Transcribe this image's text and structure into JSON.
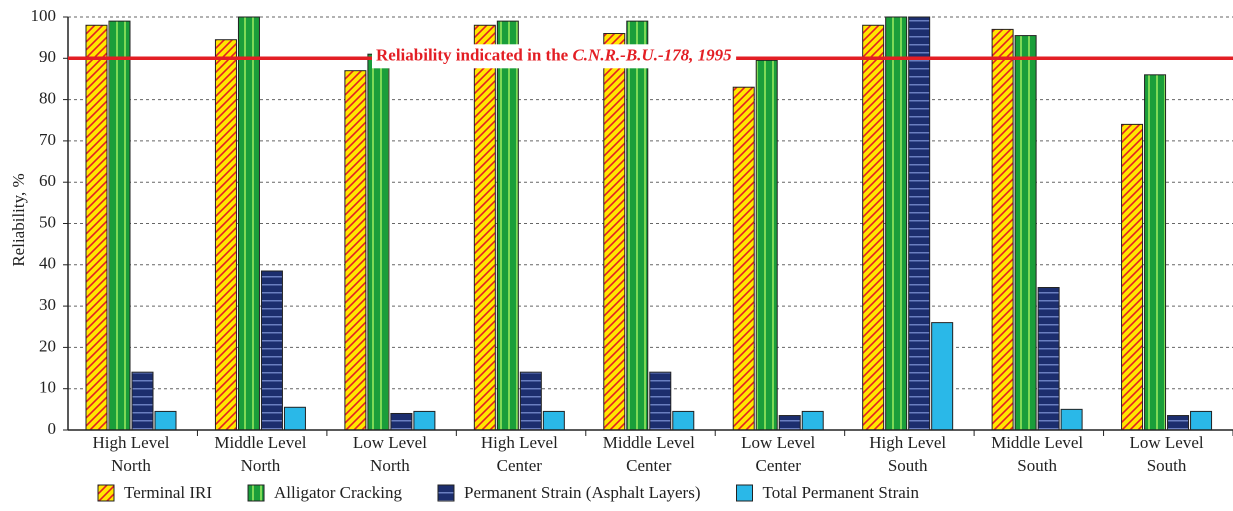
{
  "chart_data": {
    "type": "bar",
    "y_label": "Reliability, %",
    "annotation": {
      "text": "Reliability indicated in the ",
      "italic": "C.N.R.-B.U.-178, 1995",
      "value": 90,
      "color": "#e31e24"
    },
    "categories": [
      [
        "High  Level",
        "North"
      ],
      [
        "Middle Level",
        "North"
      ],
      [
        "Low  Level",
        "North"
      ],
      [
        "High Level",
        "Center"
      ],
      [
        "Middle  Level",
        "Center"
      ],
      [
        "Low  Level",
        "Center"
      ],
      [
        "High  Level",
        "South"
      ],
      [
        "Middle  Level",
        "South"
      ],
      [
        "Low  Level",
        "South"
      ]
    ],
    "series": [
      {
        "name": "Terminal IRI",
        "color": "#ffe600",
        "values": [
          98,
          94.5,
          87,
          98,
          96,
          83,
          98,
          97,
          74
        ]
      },
      {
        "name": "Alligator Cracking",
        "color": "#1a9e3a",
        "values": [
          99,
          100,
          91,
          99,
          99,
          89.5,
          100,
          95.5,
          86
        ]
      },
      {
        "name": "Permanent Strain (Asphalt Layers)",
        "color": "#1c2e6e",
        "values": [
          14,
          38.5,
          4,
          14,
          14,
          3.5,
          100,
          34.5,
          3.5
        ]
      },
      {
        "name": "Total Permanent Strain",
        "color": "#2ab8e8",
        "values": [
          4.5,
          5.5,
          4.5,
          4.5,
          4.5,
          4.5,
          26,
          5,
          4.5
        ]
      }
    ],
    "ylim": [
      0,
      100
    ],
    "yticks": [
      0,
      10,
      20,
      30,
      40,
      50,
      60,
      70,
      80,
      90,
      100
    ],
    "grid": true
  }
}
